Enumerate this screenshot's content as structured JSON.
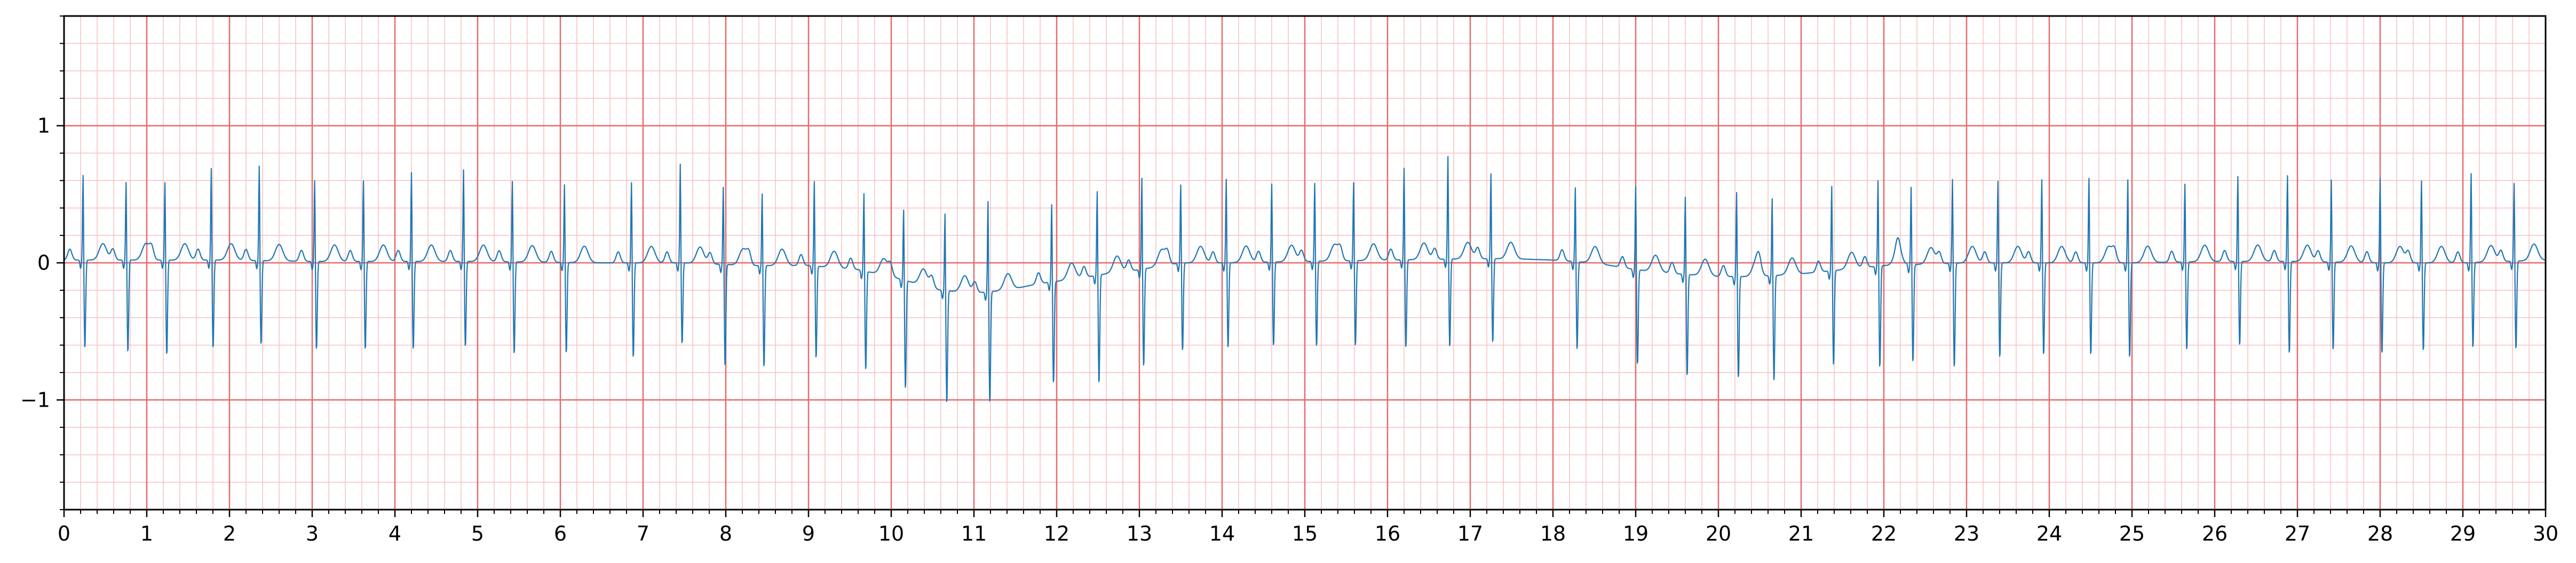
{
  "chart_data": {
    "type": "line",
    "title": "",
    "xlabel": "",
    "ylabel": "",
    "xlim": [
      0,
      30
    ],
    "ylim": [
      -1.8,
      1.8
    ],
    "x_ticks": [
      0,
      1,
      2,
      3,
      4,
      5,
      6,
      7,
      8,
      9,
      10,
      11,
      12,
      13,
      14,
      15,
      16,
      17,
      18,
      19,
      20,
      21,
      22,
      23,
      24,
      25,
      26,
      27,
      28,
      29,
      30
    ],
    "x_tick_labels": [
      "0",
      "1",
      "2",
      "3",
      "4",
      "5",
      "6",
      "7",
      "8",
      "9",
      "10",
      "11",
      "12",
      "13",
      "14",
      "15",
      "16",
      "17",
      "18",
      "19",
      "20",
      "21",
      "22",
      "23",
      "24",
      "25",
      "26",
      "27",
      "28",
      "29",
      "30"
    ],
    "y_ticks": [
      -1,
      0,
      1
    ],
    "y_tick_labels": [
      "−1",
      "0",
      "1"
    ],
    "grid": {
      "major_x_step": 1,
      "major_y_step": 1,
      "minor_x_step": 0.2,
      "minor_y_step": 0.2,
      "major_color": "#e86a6a",
      "minor_color": "#f8c0c0"
    },
    "line_color": "#1f77b4",
    "series": [
      {
        "name": "",
        "sample_rate_hz": 200,
        "baseline_points": [
          [
            0,
            0.02
          ],
          [
            0.5,
            0.02
          ],
          [
            2,
            0.02
          ],
          [
            3,
            0.01
          ],
          [
            5,
            0.01
          ],
          [
            6.5,
            0.0
          ],
          [
            7.5,
            0.0
          ],
          [
            8.3,
            -0.02
          ],
          [
            9,
            -0.02
          ],
          [
            9.6,
            -0.05
          ],
          [
            10,
            -0.1
          ],
          [
            10.3,
            -0.15
          ],
          [
            10.6,
            -0.2
          ],
          [
            11,
            -0.22
          ],
          [
            11.4,
            -0.2
          ],
          [
            11.8,
            -0.15
          ],
          [
            12.2,
            -0.12
          ],
          [
            12.6,
            -0.08
          ],
          [
            13,
            -0.05
          ],
          [
            13.5,
            0.0
          ],
          [
            14,
            0.0
          ],
          [
            15,
            0.01
          ],
          [
            16,
            0.02
          ],
          [
            17,
            0.03
          ],
          [
            17.5,
            0.03
          ],
          [
            18,
            0.02
          ],
          [
            18.5,
            0.0
          ],
          [
            19,
            -0.05
          ],
          [
            19.5,
            -0.08
          ],
          [
            20,
            -0.1
          ],
          [
            20.5,
            -0.1
          ],
          [
            21,
            -0.08
          ],
          [
            21.5,
            -0.05
          ],
          [
            22,
            -0.02
          ],
          [
            22.5,
            -0.01
          ],
          [
            23,
            0.0
          ],
          [
            24,
            0.0
          ],
          [
            25,
            0.0
          ],
          [
            26,
            0.01
          ],
          [
            27,
            0.01
          ],
          [
            28,
            0.0
          ],
          [
            29,
            0.0
          ],
          [
            30,
            0.02
          ]
        ],
        "beats": [
          [
            0.23,
            0.65,
            -0.65
          ],
          [
            0.75,
            0.6,
            -0.68
          ],
          [
            1.22,
            0.6,
            -0.7
          ],
          [
            1.78,
            0.7,
            -0.65
          ],
          [
            2.36,
            0.72,
            -0.62
          ],
          [
            3.03,
            0.62,
            -0.65
          ],
          [
            3.62,
            0.62,
            -0.65
          ],
          [
            4.2,
            0.68,
            -0.65
          ],
          [
            4.83,
            0.7,
            -0.63
          ],
          [
            5.42,
            0.62,
            -0.68
          ],
          [
            6.05,
            0.6,
            -0.67
          ],
          [
            6.86,
            0.62,
            -0.7
          ],
          [
            7.45,
            0.75,
            -0.6
          ],
          [
            7.97,
            0.6,
            -0.75
          ],
          [
            8.44,
            0.56,
            -0.75
          ],
          [
            9.07,
            0.65,
            -0.68
          ],
          [
            9.67,
            0.6,
            -0.73
          ],
          [
            10.15,
            0.55,
            -0.8
          ],
          [
            10.65,
            0.6,
            -0.83
          ],
          [
            11.17,
            0.7,
            -0.82
          ],
          [
            11.94,
            0.6,
            -0.75
          ],
          [
            12.49,
            0.65,
            -0.8
          ],
          [
            13.03,
            0.7,
            -0.72
          ],
          [
            13.5,
            0.6,
            -0.65
          ],
          [
            14.05,
            0.64,
            -0.63
          ],
          [
            14.6,
            0.6,
            -0.62
          ],
          [
            15.12,
            0.6,
            -0.63
          ],
          [
            15.59,
            0.6,
            -0.63
          ],
          [
            16.2,
            0.7,
            -0.65
          ],
          [
            16.73,
            0.78,
            -0.65
          ],
          [
            17.25,
            0.65,
            -0.62
          ],
          [
            18.27,
            0.57,
            -0.65
          ],
          [
            19.0,
            0.64,
            -0.7
          ],
          [
            19.6,
            0.6,
            -0.75
          ],
          [
            20.22,
            0.65,
            -0.75
          ],
          [
            20.65,
            0.6,
            -0.78
          ],
          [
            21.37,
            0.65,
            -0.7
          ],
          [
            21.93,
            0.66,
            -0.75
          ],
          [
            22.33,
            0.6,
            -0.72
          ],
          [
            22.83,
            0.65,
            -0.77
          ],
          [
            23.38,
            0.63,
            -0.7
          ],
          [
            23.91,
            0.64,
            -0.68
          ],
          [
            24.48,
            0.65,
            -0.68
          ],
          [
            24.95,
            0.64,
            -0.7
          ],
          [
            25.64,
            0.6,
            -0.65
          ],
          [
            26.28,
            0.65,
            -0.62
          ],
          [
            26.88,
            0.66,
            -0.68
          ],
          [
            27.41,
            0.63,
            -0.65
          ],
          [
            28.0,
            0.65,
            -0.67
          ],
          [
            28.5,
            0.63,
            -0.65
          ],
          [
            29.1,
            0.68,
            -0.63
          ],
          [
            29.62,
            0.6,
            -0.65
          ]
        ]
      }
    ]
  }
}
